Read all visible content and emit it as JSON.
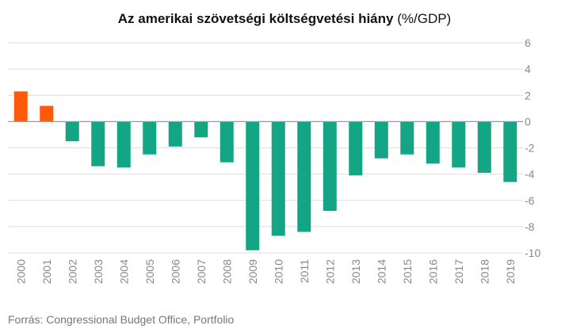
{
  "chart_data": {
    "type": "bar",
    "title": "Az amerikai szövetségi költségvetési hiány",
    "title_unit": "(%/GDP)",
    "xlabel": "",
    "ylabel": "",
    "categories": [
      "2000",
      "2001",
      "2002",
      "2003",
      "2004",
      "2005",
      "2006",
      "2007",
      "2008",
      "2009",
      "2010",
      "2011",
      "2012",
      "2013",
      "2014",
      "2015",
      "2016",
      "2017",
      "2018",
      "2019"
    ],
    "values": [
      2.3,
      1.2,
      -1.5,
      -3.4,
      -3.5,
      -2.5,
      -1.9,
      -1.2,
      -3.1,
      -9.8,
      -8.7,
      -8.4,
      -6.8,
      -4.1,
      -2.8,
      -2.5,
      -3.2,
      -3.5,
      -3.9,
      -4.6
    ],
    "ylim": [
      -10,
      6
    ],
    "yticks": [
      6,
      4,
      2,
      0,
      -2,
      -4,
      -6,
      -8,
      -10
    ],
    "grid": true,
    "axis_side": "right",
    "colors": {
      "positive": "#FF5A0A",
      "negative": "#13A584",
      "grid": "#dddddd",
      "zero_line": "#999999",
      "tick_text": "#888888"
    }
  },
  "source": "Forrás: Congressional Budget Office, Portfolio"
}
